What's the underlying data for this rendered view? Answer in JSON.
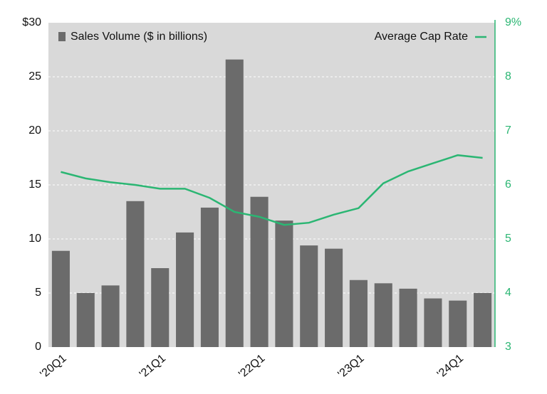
{
  "chart_data": {
    "type": "bar-line",
    "categories": [
      "'20Q1",
      null,
      null,
      null,
      "'21Q1",
      null,
      null,
      null,
      "'22Q1",
      null,
      null,
      null,
      "'23Q1",
      null,
      null,
      null,
      "'24Q1",
      null
    ],
    "series": [
      {
        "name": "Sales Volume ($ in billions)",
        "type": "bar",
        "color": "#6b6b6b",
        "axis": "y",
        "values": [
          8.9,
          5.0,
          5.7,
          13.5,
          7.3,
          10.6,
          12.9,
          26.6,
          13.9,
          11.7,
          9.4,
          9.1,
          6.2,
          5.9,
          5.4,
          4.5,
          4.3,
          5.0
        ]
      },
      {
        "name": "Average Cap Rate",
        "type": "line",
        "color": "#2bb673",
        "axis": "y2",
        "values": [
          6.24,
          6.12,
          6.05,
          6.0,
          5.93,
          5.93,
          5.76,
          5.5,
          5.41,
          5.26,
          5.3,
          5.45,
          5.57,
          6.03,
          6.25,
          6.4,
          6.55,
          6.5
        ]
      }
    ],
    "ylim": [
      0,
      30
    ],
    "yticks": [
      0,
      5,
      10,
      15,
      20,
      25,
      {
        "value": 30,
        "label": "$30"
      }
    ],
    "y2lim": [
      3,
      9
    ],
    "y2ticks": [
      3,
      4,
      5,
      6,
      7,
      8,
      {
        "value": 9,
        "label": "9%"
      }
    ],
    "grid": true
  }
}
